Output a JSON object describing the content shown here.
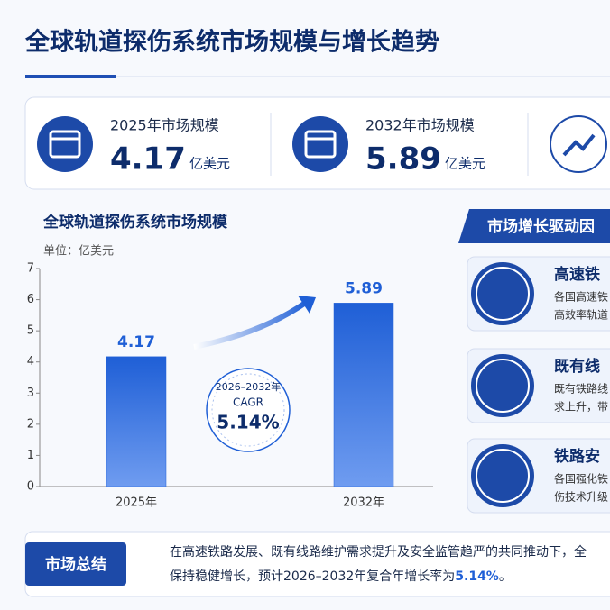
{
  "header": {
    "title": "全球轨道探伤系统市场规模与增长趋势"
  },
  "kpis": [
    {
      "label": "2025年市场规模",
      "value": "4.17",
      "unit": "亿美元"
    },
    {
      "label": "2032年市场规模",
      "value": "5.89",
      "unit": "亿美元"
    }
  ],
  "chart_data": {
    "type": "bar",
    "title": "全球轨道探伤系统市场规模",
    "unit_label": "单位：亿美元",
    "categories": [
      "2025年",
      "2032年"
    ],
    "values": [
      4.17,
      5.89
    ],
    "color": "#1f5fd6",
    "ylim": [
      0,
      7
    ],
    "yticks": [
      0,
      1,
      2,
      3,
      4,
      5,
      6,
      7
    ],
    "badge": {
      "period": "2026–2032年",
      "label": "CAGR",
      "value": "5.14%"
    }
  },
  "drivers": {
    "title": "市场增长驱动因",
    "items": [
      {
        "title": "高速铁",
        "lines": [
          "各国高速铁",
          "高效率轨道"
        ]
      },
      {
        "title": "既有线",
        "lines": [
          "既有铁路线",
          "求上升，带"
        ]
      },
      {
        "title": "铁路安",
        "lines": [
          "各国强化铁",
          "伤技术升级"
        ]
      }
    ]
  },
  "summary": {
    "label": "市场总结",
    "line1": "在高速铁路发展、既有线路维护需求提升及安全监管趋严的共同推动下，全",
    "line2": "保持稳健增长，预计2026–2032年复合年增长率为",
    "highlight": "5.14%",
    "end": "。"
  }
}
